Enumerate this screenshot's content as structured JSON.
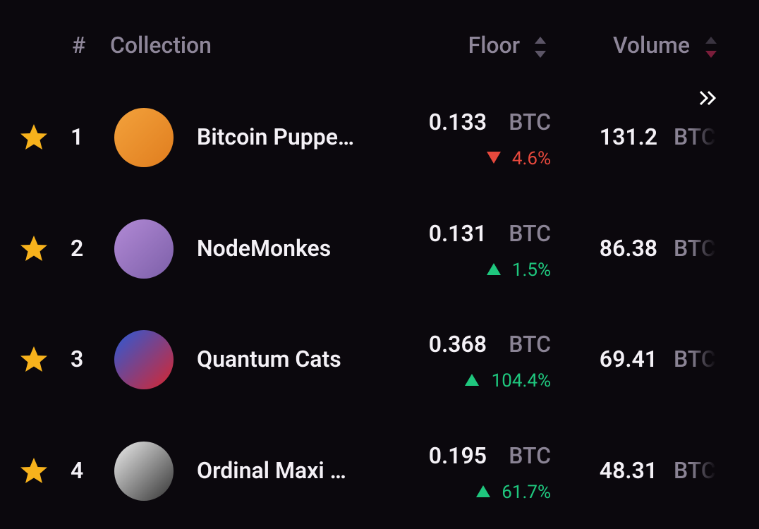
{
  "header": {
    "rank": "#",
    "collection": "Collection",
    "floor": "Floor",
    "volume": "Volume"
  },
  "rows": [
    {
      "rank": "1",
      "name": "Bitcoin Puppe…",
      "floor": "0.133",
      "floor_unit": "BTC",
      "change": "4.6%",
      "direction": "down",
      "volume": "131.2",
      "volume_unit": "BTC"
    },
    {
      "rank": "2",
      "name": "NodeMonkes",
      "floor": "0.131",
      "floor_unit": "BTC",
      "change": "1.5%",
      "direction": "up",
      "volume": "86.38",
      "volume_unit": "BTC"
    },
    {
      "rank": "3",
      "name": "Quantum Cats",
      "floor": "0.368",
      "floor_unit": "BTC",
      "change": "104.4%",
      "direction": "up",
      "volume": "69.41",
      "volume_unit": "BTC"
    },
    {
      "rank": "4",
      "name": "Ordinal Maxi …",
      "floor": "0.195",
      "floor_unit": "BTC",
      "change": "61.7%",
      "direction": "up",
      "volume": "48.31",
      "volume_unit": "BTC"
    }
  ]
}
